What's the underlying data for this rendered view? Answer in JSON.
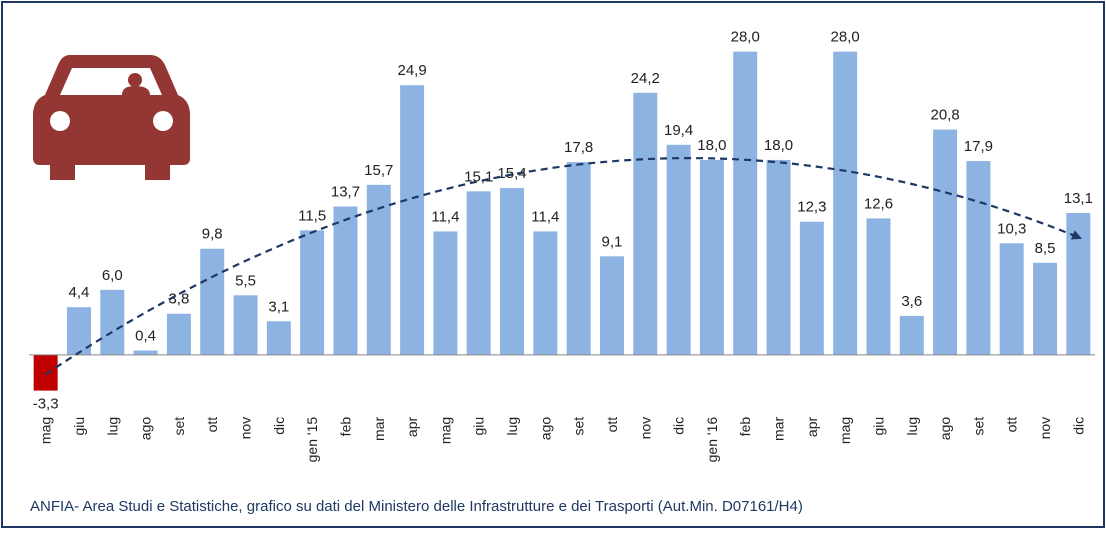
{
  "chart_data": {
    "type": "bar",
    "categories": [
      "mag",
      "giu",
      "lug",
      "ago",
      "set",
      "ott",
      "nov",
      "dic",
      "gen '15",
      "feb",
      "mar",
      "apr",
      "mag",
      "giu",
      "lug",
      "ago",
      "set",
      "ott",
      "nov",
      "dic",
      "gen '16",
      "feb",
      "mar",
      "apr",
      "mag",
      "giu",
      "lug",
      "ago",
      "set",
      "ott",
      "nov",
      "dic"
    ],
    "values": [
      -3.3,
      4.4,
      6.0,
      0.4,
      3.8,
      9.8,
      5.5,
      3.1,
      11.5,
      13.7,
      15.7,
      24.9,
      11.4,
      15.1,
      15.4,
      11.4,
      17.8,
      9.1,
      24.2,
      19.4,
      18.0,
      28.0,
      18.0,
      12.3,
      28.0,
      12.6,
      3.6,
      20.8,
      17.9,
      10.3,
      8.5,
      13.1
    ],
    "value_labels": [
      "-3,3",
      "4,4",
      "6,0",
      "0,4",
      "3,8",
      "9,8",
      "5,5",
      "3,1",
      "11,5",
      "13,7",
      "15,7",
      "24,9",
      "11,4",
      "15,1",
      "15,4",
      "11,4",
      "17,8",
      "9,1",
      "24,2",
      "19,4",
      "18,0",
      "28,0",
      "18,0",
      "12,3",
      "28,0",
      "12,6",
      "3,6",
      "20,8",
      "17,9",
      "10,3",
      "8,5",
      "13,1"
    ],
    "color": "#8db3e2",
    "negative_color": "#c00000",
    "ylim": [
      -5,
      30
    ],
    "source": "ANFIA- Area Studi e Statistiche, grafico  su dati del Ministero delle  Infrastrutture e dei Trasporti (Aut.Min. D07161/H4)"
  }
}
